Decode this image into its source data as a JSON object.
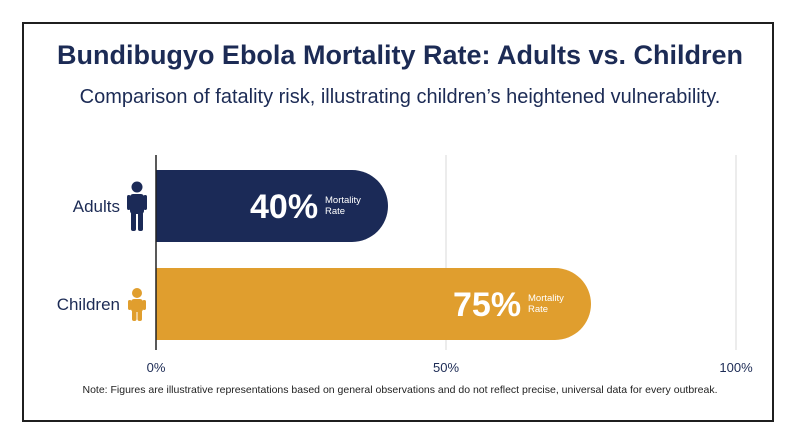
{
  "chart_data": {
    "type": "bar",
    "orientation": "horizontal",
    "title": "Bundibugyo Ebola Mortality Rate: Adults vs. Children",
    "subtitle": "Comparison of fatality risk, illustrating children’s heightened vulnerability.",
    "categories": [
      "Adults",
      "Children"
    ],
    "values": [
      40,
      75
    ],
    "value_labels": [
      "40%",
      "75%"
    ],
    "bar_annotation": [
      "Mortality",
      "Rate"
    ],
    "xlim": [
      0,
      100
    ],
    "x_ticks": [
      0,
      50,
      100
    ],
    "x_tick_labels": [
      "0%",
      "50%",
      "100%"
    ],
    "grid": true,
    "colors": [
      "#1b2a57",
      "#e09e2e"
    ],
    "icons": [
      "adult-person-icon",
      "child-person-icon"
    ],
    "note": "Note: Figures are illustrative representations based on general observations and do not reflect precise, universal data for every outbreak."
  }
}
